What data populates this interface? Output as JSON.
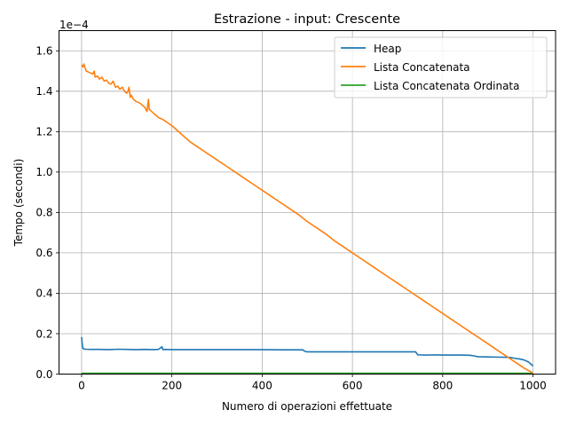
{
  "chart_data": {
    "type": "line",
    "title": "Estrazione - input: Crescente",
    "xlabel": "Numero di operazioni effettuate",
    "ylabel": "Tempo (secondi)",
    "y_offset_text": "1e−4",
    "xlim": [
      -50,
      1050
    ],
    "ylim": [
      0,
      1.7
    ],
    "y_scale_factor": 0.0001,
    "xticks": [
      0,
      200,
      400,
      600,
      800,
      1000
    ],
    "yticks": [
      0.0,
      0.2,
      0.4,
      0.6,
      0.8,
      1.0,
      1.2,
      1.4,
      1.6
    ],
    "xtick_labels": [
      "0",
      "200",
      "400",
      "600",
      "800",
      "1000"
    ],
    "ytick_labels": [
      "0.0",
      "0.2",
      "0.4",
      "0.6",
      "0.8",
      "1.0",
      "1.2",
      "1.4",
      "1.6"
    ],
    "grid": true,
    "legend_position": "top-right",
    "series": [
      {
        "name": "Heap",
        "color": "#1f77b4",
        "x": [
          0,
          1,
          2,
          3,
          4,
          6,
          10,
          20,
          40,
          60,
          80,
          100,
          120,
          140,
          160,
          170,
          178,
          180,
          185,
          200,
          250,
          300,
          350,
          400,
          450,
          480,
          490,
          495,
          500,
          550,
          600,
          650,
          700,
          740,
          745,
          750,
          760,
          780,
          800,
          820,
          840,
          860,
          870,
          875,
          880,
          900,
          920,
          940,
          950,
          960,
          970,
          980,
          990,
          995,
          1000
        ],
        "y": [
          0.183,
          0.16,
          0.14,
          0.128,
          0.125,
          0.124,
          0.123,
          0.122,
          0.122,
          0.121,
          0.123,
          0.122,
          0.121,
          0.122,
          0.121,
          0.122,
          0.135,
          0.121,
          0.122,
          0.121,
          0.121,
          0.121,
          0.121,
          0.121,
          0.12,
          0.12,
          0.12,
          0.112,
          0.11,
          0.11,
          0.11,
          0.11,
          0.11,
          0.11,
          0.095,
          0.095,
          0.094,
          0.095,
          0.094,
          0.094,
          0.094,
          0.093,
          0.09,
          0.087,
          0.086,
          0.085,
          0.084,
          0.083,
          0.082,
          0.078,
          0.075,
          0.07,
          0.06,
          0.05,
          0.04
        ]
      },
      {
        "name": "Lista Concatenata",
        "color": "#ff7f0e",
        "x": [
          0,
          3,
          5,
          10,
          15,
          20,
          25,
          28,
          30,
          35,
          40,
          45,
          50,
          55,
          60,
          65,
          70,
          75,
          80,
          85,
          90,
          95,
          100,
          103,
          105,
          108,
          110,
          115,
          120,
          130,
          140,
          145,
          148,
          150,
          155,
          160,
          170,
          180,
          200,
          220,
          240,
          260,
          280,
          300,
          320,
          340,
          360,
          380,
          400,
          420,
          440,
          460,
          480,
          500,
          520,
          540,
          560,
          580,
          600,
          620,
          640,
          660,
          680,
          700,
          720,
          740,
          760,
          780,
          800,
          820,
          840,
          860,
          880,
          900,
          920,
          940,
          960,
          980,
          1000
        ],
        "y": [
          1.53,
          1.52,
          1.535,
          1.5,
          1.495,
          1.49,
          1.485,
          1.5,
          1.47,
          1.475,
          1.46,
          1.47,
          1.45,
          1.455,
          1.44,
          1.435,
          1.45,
          1.42,
          1.425,
          1.41,
          1.42,
          1.4,
          1.39,
          1.4,
          1.42,
          1.37,
          1.38,
          1.36,
          1.35,
          1.34,
          1.32,
          1.3,
          1.36,
          1.31,
          1.3,
          1.29,
          1.27,
          1.26,
          1.23,
          1.19,
          1.15,
          1.12,
          1.09,
          1.06,
          1.03,
          1.0,
          0.97,
          0.94,
          0.91,
          0.88,
          0.85,
          0.82,
          0.79,
          0.755,
          0.725,
          0.695,
          0.66,
          0.63,
          0.6,
          0.57,
          0.54,
          0.51,
          0.48,
          0.45,
          0.42,
          0.39,
          0.36,
          0.33,
          0.3,
          0.27,
          0.24,
          0.21,
          0.18,
          0.15,
          0.12,
          0.09,
          0.06,
          0.03,
          0.005
        ]
      },
      {
        "name": "Lista Concatenata Ordinata",
        "color": "#2ca02c",
        "x": [
          0,
          100,
          200,
          300,
          400,
          500,
          600,
          700,
          800,
          900,
          1000
        ],
        "y": [
          0.004,
          0.004,
          0.004,
          0.004,
          0.004,
          0.004,
          0.004,
          0.004,
          0.004,
          0.004,
          0.004
        ]
      }
    ]
  }
}
